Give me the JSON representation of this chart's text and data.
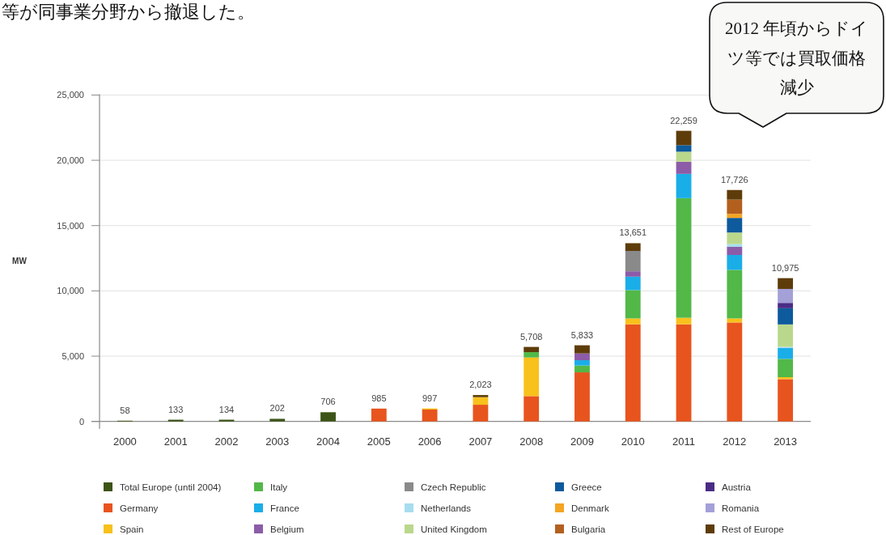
{
  "chart_data": {
    "type": "bar",
    "stacked": true,
    "ylabel": "MW",
    "categories": [
      "2000",
      "2001",
      "2002",
      "2003",
      "2004",
      "2005",
      "2006",
      "2007",
      "2008",
      "2009",
      "2010",
      "2011",
      "2012",
      "2013"
    ],
    "ylim": [
      0,
      25000
    ],
    "yticks": [
      0,
      {
        "value": 5000,
        "label": "5,000"
      },
      {
        "value": 10000,
        "label": "10,000"
      },
      {
        "value": 15000,
        "label": "15,000"
      },
      {
        "value": 20000,
        "label": "20,000"
      },
      {
        "value": 25000,
        "label": "25,000"
      }
    ],
    "grid": "y",
    "legend": "bottom",
    "totals": [
      "58",
      "133",
      "134",
      "202",
      "706",
      "985",
      "997",
      "2,023",
      "5,708",
      "5,833",
      "13,651",
      "22,259",
      "17,726",
      "10,975"
    ],
    "annotations": [
      "等が同事業分野から撤退した。",
      "2012 年頃からドイツ等では買取価格減少"
    ],
    "series": [
      {
        "name": "Total Europe (until 2004)",
        "color": "#3d5418",
        "values": [
          58,
          133,
          134,
          202,
          706,
          null,
          null,
          null,
          null,
          null,
          null,
          null,
          null,
          null
        ]
      },
      {
        "name": "Germany",
        "color": "#e8541e",
        "values": [
          null,
          null,
          null,
          null,
          null,
          985,
          910,
          1280,
          1940,
          3760,
          7440,
          7440,
          7580,
          3240
        ]
      },
      {
        "name": "Spain",
        "color": "#f8c11c",
        "values": [
          null,
          null,
          null,
          null,
          null,
          null,
          87,
          580,
          2960,
          null,
          450,
          500,
          310,
          150
        ]
      },
      {
        "name": "Italy",
        "color": "#52b848",
        "values": [
          null,
          null,
          null,
          null,
          null,
          null,
          null,
          null,
          410,
          520,
          2170,
          9160,
          3720,
          1400
        ]
      },
      {
        "name": "France",
        "color": "#1aaee8",
        "values": [
          null,
          null,
          null,
          null,
          null,
          null,
          null,
          null,
          null,
          410,
          1030,
          1860,
          1140,
          830
        ]
      },
      {
        "name": "Belgium",
        "color": "#8c5ca8",
        "values": [
          null,
          null,
          null,
          null,
          null,
          null,
          null,
          null,
          null,
          520,
          410,
          930,
          620,
          null
        ]
      },
      {
        "name": "Czech Republic",
        "color": "#8a8a8a",
        "values": [
          null,
          null,
          null,
          null,
          null,
          null,
          null,
          null,
          null,
          null,
          1560,
          null,
          null,
          null
        ]
      },
      {
        "name": "Netherlands",
        "color": "#a8dcef",
        "values": [
          null,
          null,
          null,
          null,
          null,
          null,
          null,
          null,
          null,
          null,
          null,
          null,
          210,
          100
        ]
      },
      {
        "name": "United Kingdom",
        "color": "#bad88c",
        "values": [
          null,
          null,
          null,
          null,
          null,
          null,
          null,
          null,
          null,
          null,
          null,
          770,
          890,
          1710
        ]
      },
      {
        "name": "Greece",
        "color": "#0d5a9c",
        "values": [
          null,
          null,
          null,
          null,
          null,
          null,
          null,
          null,
          null,
          null,
          null,
          500,
          1120,
          1240
        ]
      },
      {
        "name": "Denmark",
        "color": "#f4a522",
        "values": [
          null,
          null,
          null,
          null,
          null,
          null,
          null,
          null,
          null,
          null,
          null,
          null,
          310,
          null
        ]
      },
      {
        "name": "Bulgaria",
        "color": "#b3601f",
        "values": [
          null,
          null,
          null,
          null,
          null,
          null,
          null,
          null,
          null,
          null,
          null,
          null,
          1090,
          null
        ]
      },
      {
        "name": "Austria",
        "color": "#4b2c85",
        "values": [
          null,
          null,
          null,
          null,
          null,
          null,
          null,
          null,
          null,
          null,
          null,
          null,
          null,
          410
        ]
      },
      {
        "name": "Romania",
        "color": "#a4a0d8",
        "values": [
          null,
          null,
          null,
          null,
          null,
          null,
          null,
          null,
          null,
          null,
          null,
          null,
          null,
          1070
        ]
      },
      {
        "name": "Rest of Europe",
        "color": "#5e3c0a",
        "values": [
          null,
          null,
          null,
          null,
          null,
          null,
          null,
          163,
          398,
          623,
          591,
          1099,
          736,
          825
        ]
      }
    ]
  }
}
